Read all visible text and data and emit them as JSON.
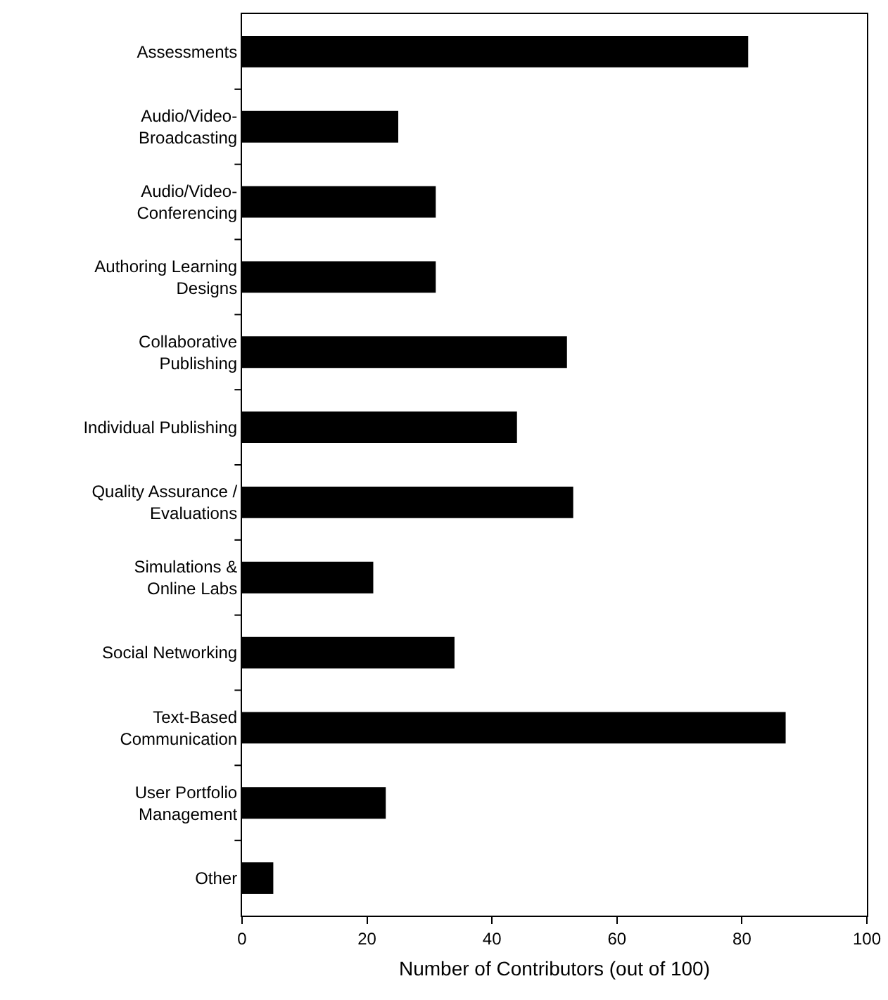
{
  "chart_data": {
    "type": "bar",
    "orientation": "horizontal",
    "xlabel": "Number of Contributors (out of 100)",
    "categories": [
      "Assessments",
      "Audio/Video-\nBroadcasting",
      "Audio/Video-\nConferencing",
      "Authoring Learning\nDesigns",
      "Collaborative\nPublishing",
      "Individual Publishing",
      "Quality Assurance /\nEvaluations",
      "Simulations &\nOnline Labs",
      "Social Networking",
      "Text-Based\nCommunication",
      "User Portfolio\nManagement",
      "Other"
    ],
    "values": [
      81,
      25,
      31,
      31,
      52,
      44,
      53,
      21,
      34,
      87,
      23,
      5
    ],
    "color": "#000000",
    "xlim": [
      0,
      100
    ],
    "xticks": [
      0,
      20,
      40,
      60,
      80,
      100
    ]
  }
}
